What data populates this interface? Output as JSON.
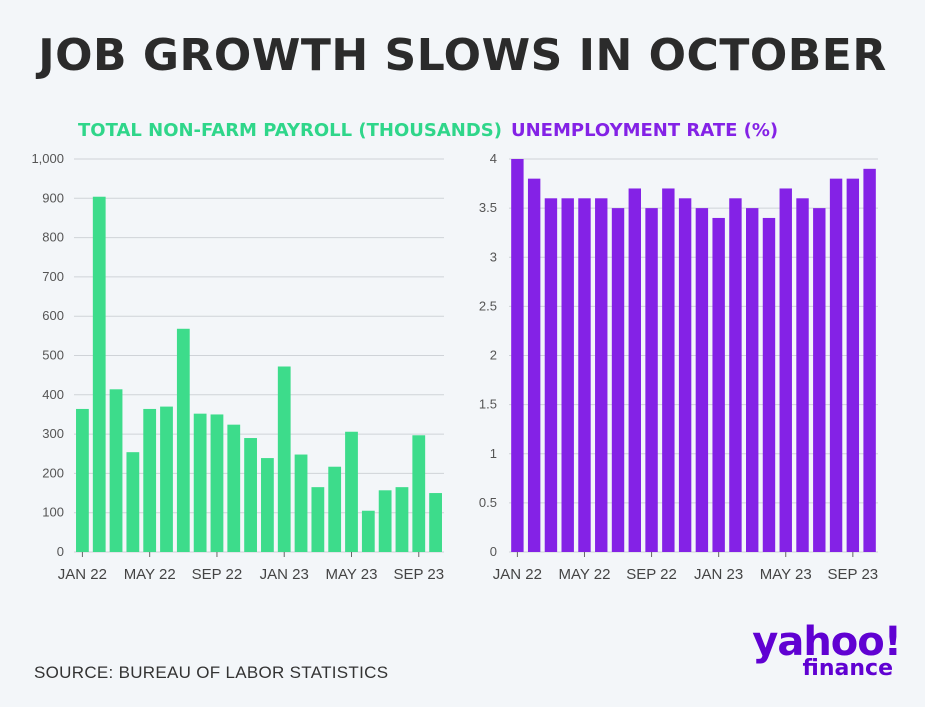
{
  "title": "JOB GROWTH SLOWS IN OCTOBER",
  "source": "SOURCE: BUREAU OF LABOR STATISTICS",
  "logo": {
    "word": "yahoo!",
    "sub": "finance"
  },
  "colors": {
    "payroll": "#3ddc8b",
    "unemployment": "#8422e6",
    "logo": "#6001d2"
  },
  "chart_data": [
    {
      "type": "bar",
      "title": "TOTAL NON-FARM PAYROLL (THOUSANDS)",
      "ylim": [
        0,
        1000
      ],
      "yticks": [
        0,
        100,
        200,
        300,
        400,
        500,
        600,
        700,
        800,
        900,
        1000
      ],
      "ytick_labels": [
        "0",
        "100",
        "200",
        "300",
        "400",
        "500",
        "600",
        "700",
        "800",
        "900",
        "1,000"
      ],
      "xtick_labels": [
        "JAN 22",
        "MAY 22",
        "SEP 22",
        "JAN 23",
        "MAY 23",
        "SEP 23"
      ],
      "xtick_index": [
        0,
        4,
        8,
        12,
        16,
        20
      ],
      "categories": [
        "Jan 22",
        "Feb 22",
        "Mar 22",
        "Apr 22",
        "May 22",
        "Jun 22",
        "Jul 22",
        "Aug 22",
        "Sep 22",
        "Oct 22",
        "Nov 22",
        "Dec 22",
        "Jan 23",
        "Feb 23",
        "Mar 23",
        "Apr 23",
        "May 23",
        "Jun 23",
        "Jul 23",
        "Aug 23",
        "Sep 23",
        "Oct 23"
      ],
      "values": [
        364,
        904,
        414,
        254,
        364,
        370,
        568,
        352,
        350,
        324,
        290,
        239,
        472,
        248,
        165,
        217,
        306,
        105,
        157,
        165,
        297,
        150
      ]
    },
    {
      "type": "bar",
      "title": "UNEMPLOYMENT RATE (%)",
      "ylim": [
        0,
        4
      ],
      "yticks": [
        0,
        0.5,
        1,
        1.5,
        2,
        2.5,
        3,
        3.5,
        4
      ],
      "ytick_labels": [
        "0",
        "0.5",
        "1",
        "1.5",
        "2",
        "2.5",
        "3",
        "3.5",
        "4"
      ],
      "xtick_labels": [
        "JAN 22",
        "MAY 22",
        "SEP 22",
        "JAN 23",
        "MAY 23",
        "SEP 23"
      ],
      "xtick_index": [
        0,
        4,
        8,
        12,
        16,
        20
      ],
      "categories": [
        "Jan 22",
        "Feb 22",
        "Mar 22",
        "Apr 22",
        "May 22",
        "Jun 22",
        "Jul 22",
        "Aug 22",
        "Sep 22",
        "Oct 22",
        "Nov 22",
        "Dec 22",
        "Jan 23",
        "Feb 23",
        "Mar 23",
        "Apr 23",
        "May 23",
        "Jun 23",
        "Jul 23",
        "Aug 23",
        "Sep 23",
        "Oct 23"
      ],
      "values": [
        4.0,
        3.8,
        3.6,
        3.6,
        3.6,
        3.6,
        3.5,
        3.7,
        3.5,
        3.7,
        3.6,
        3.5,
        3.4,
        3.6,
        3.5,
        3.4,
        3.7,
        3.6,
        3.5,
        3.8,
        3.8,
        3.9
      ]
    }
  ]
}
